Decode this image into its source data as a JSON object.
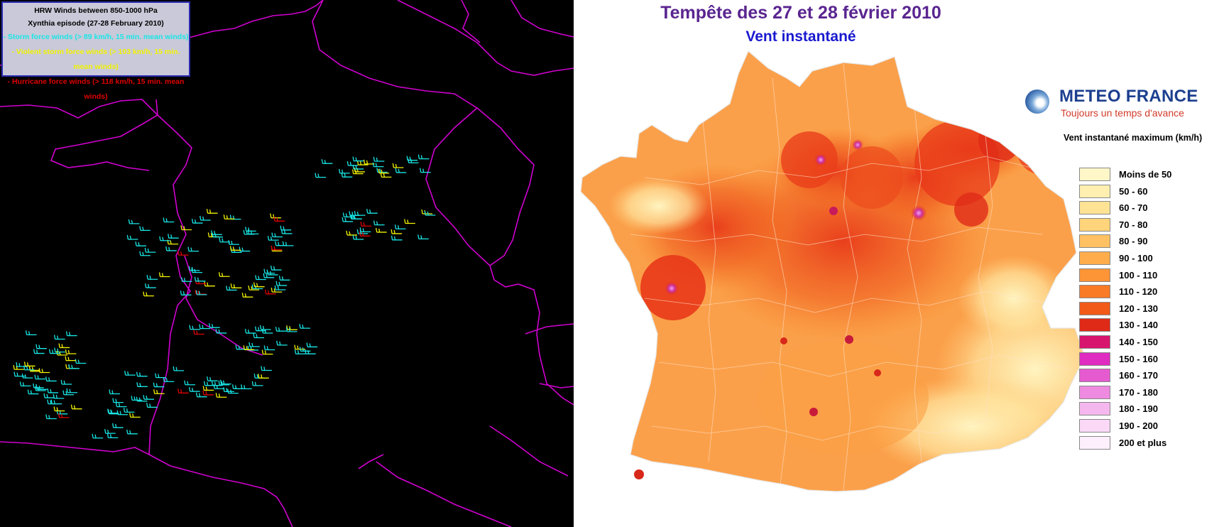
{
  "left": {
    "legend": {
      "title": "HRW Winds between 850-1000 hPa",
      "subtitle": "Xynthia episode (27-28 February 2010)",
      "lines": [
        "- Storm force winds (> 89 km/h, 15 min. mean winds)",
        "- Violent storm force winds (> 103 km/h, 15 min. mean winds)",
        "- Hurricane force winds (> 118 km/h, 15 min. mean winds)"
      ]
    },
    "colors": {
      "storm": "#19e6e6",
      "violent": "#f3f300",
      "hurricane": "#e00000",
      "borders": "#d000d0",
      "background": "#000000"
    }
  },
  "right": {
    "title": "Tempête des 27 et 28 février 2010",
    "subtitle": "Vent instantané",
    "brand": {
      "name": "METEO FRANCE",
      "tagline": "Toujours un temps d'avance"
    },
    "scale_title": "Vent instantané maximum (km/h)",
    "scale": [
      {
        "label": "Moins de 50",
        "color": "#fff7c8"
      },
      {
        "label": "50 - 60",
        "color": "#ffefb0"
      },
      {
        "label": "60 - 70",
        "color": "#ffe394"
      },
      {
        "label": "70 - 80",
        "color": "#ffd47a"
      },
      {
        "label": "80 - 90",
        "color": "#ffc162"
      },
      {
        "label": "90 - 100",
        "color": "#ffad4c"
      },
      {
        "label": "100 - 110",
        "color": "#fd9436"
      },
      {
        "label": "110 - 120",
        "color": "#f97b26"
      },
      {
        "label": "120 - 130",
        "color": "#f25a1a"
      },
      {
        "label": "130 - 140",
        "color": "#e02a18"
      },
      {
        "label": "140 - 150",
        "color": "#d8156e"
      },
      {
        "label": "150 - 160",
        "color": "#e02cc0"
      },
      {
        "label": "160 - 170",
        "color": "#e65ad0"
      },
      {
        "label": "170 - 180",
        "color": "#ee8ae0"
      },
      {
        "label": "180 - 190",
        "color": "#f5b8ee"
      },
      {
        "label": "190 - 200",
        "color": "#fad8f6"
      },
      {
        "label": "200 et plus",
        "color": "#fdf0fc"
      }
    ]
  }
}
